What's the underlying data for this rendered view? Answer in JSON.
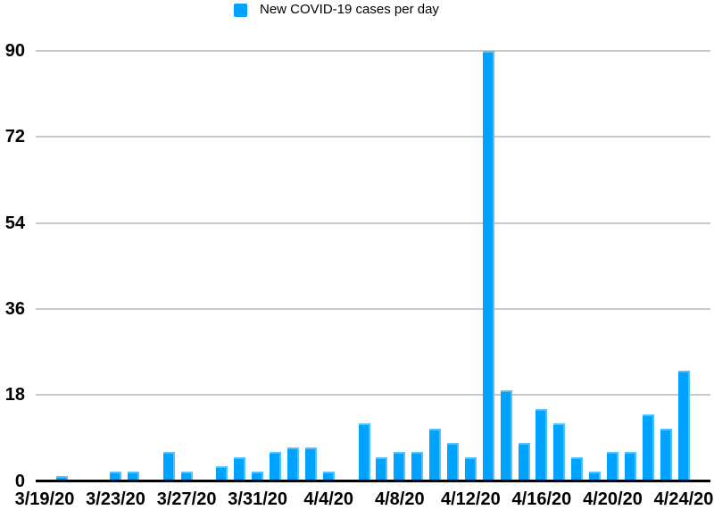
{
  "legend": {
    "label": "New COVID-19 cases per day",
    "marker_color": "#00A2FF"
  },
  "chart_data": {
    "type": "bar",
    "title": "",
    "series_name": "New COVID-19 cases per day",
    "categories": [
      "3/19/20",
      "3/20/20",
      "3/21/20",
      "3/22/20",
      "3/23/20",
      "3/24/20",
      "3/25/20",
      "3/26/20",
      "3/27/20",
      "3/28/20",
      "3/29/20",
      "3/30/20",
      "3/31/20",
      "4/1/20",
      "4/2/20",
      "4/3/20",
      "4/4/20",
      "4/5/20",
      "4/6/20",
      "4/7/20",
      "4/8/20",
      "4/9/20",
      "4/10/20",
      "4/11/20",
      "4/12/20",
      "4/13/20",
      "4/14/20",
      "4/15/20",
      "4/16/20",
      "4/17/20",
      "4/18/20",
      "4/19/20",
      "4/20/20",
      "4/21/20",
      "4/22/20",
      "4/23/20",
      "4/24/20"
    ],
    "values": [
      0,
      1,
      0,
      0,
      2,
      2,
      0,
      6,
      2,
      0,
      3,
      5,
      2,
      6,
      7,
      7,
      2,
      0,
      12,
      5,
      6,
      6,
      11,
      8,
      5,
      90,
      19,
      8,
      15,
      12,
      5,
      2,
      6,
      6,
      14,
      11,
      23
    ],
    "x_tick_labels": [
      "3/19/20",
      "3/23/20",
      "3/27/20",
      "3/31/20",
      "4/4/20",
      "4/8/20",
      "4/12/20",
      "4/16/20",
      "4/20/20",
      "4/24/20"
    ],
    "x_tick_every_n_days": 4,
    "y_ticks": [
      0,
      18,
      36,
      54,
      72,
      90
    ],
    "ylim": [
      0,
      90
    ],
    "xlabel": "",
    "ylabel": "",
    "bar_color": "#00A2FF",
    "gridline_color": "#C9C9C9",
    "baseline_color": "#000000",
    "label_color": "#000000",
    "background_color": "#FFFFFF",
    "grid": "horizontal",
    "legend_position": "top-center"
  }
}
